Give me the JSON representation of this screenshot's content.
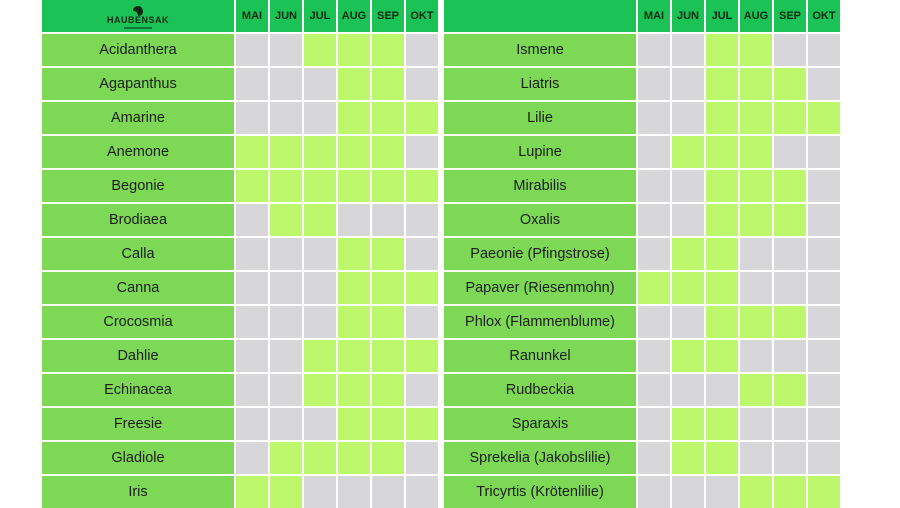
{
  "brand": {
    "name": "HAUBENSAK"
  },
  "colors": {
    "header": "#1bc256",
    "name_cell": "#7cd855",
    "bloom": "#bdf76b",
    "empty": "#d7d7d9"
  },
  "chart_data": {
    "type": "table",
    "title": "",
    "months": [
      "MAI",
      "JUN",
      "JUL",
      "AUG",
      "SEP",
      "OKT"
    ],
    "tables": [
      {
        "plants": [
          {
            "name": "Acidanthera",
            "bloom": [
              0,
              0,
              1,
              1,
              1,
              0
            ]
          },
          {
            "name": "Agapanthus",
            "bloom": [
              0,
              0,
              0,
              1,
              1,
              0
            ]
          },
          {
            "name": "Amarine",
            "bloom": [
              0,
              0,
              0,
              1,
              1,
              1
            ]
          },
          {
            "name": "Anemone",
            "bloom": [
              1,
              1,
              1,
              1,
              1,
              0
            ]
          },
          {
            "name": "Begonie",
            "bloom": [
              1,
              1,
              1,
              1,
              1,
              1
            ]
          },
          {
            "name": "Brodiaea",
            "bloom": [
              0,
              1,
              1,
              0,
              0,
              0
            ]
          },
          {
            "name": "Calla",
            "bloom": [
              0,
              0,
              0,
              1,
              1,
              0
            ]
          },
          {
            "name": "Canna",
            "bloom": [
              0,
              0,
              0,
              1,
              1,
              1
            ]
          },
          {
            "name": "Crocosmia",
            "bloom": [
              0,
              0,
              0,
              1,
              1,
              0
            ]
          },
          {
            "name": "Dahlie",
            "bloom": [
              0,
              0,
              1,
              1,
              1,
              1
            ]
          },
          {
            "name": "Echinacea",
            "bloom": [
              0,
              0,
              1,
              1,
              1,
              0
            ]
          },
          {
            "name": "Freesie",
            "bloom": [
              0,
              0,
              0,
              1,
              1,
              1
            ]
          },
          {
            "name": "Gladiole",
            "bloom": [
              0,
              1,
              1,
              1,
              1,
              0
            ]
          },
          {
            "name": "Iris",
            "bloom": [
              1,
              1,
              0,
              0,
              0,
              0
            ]
          }
        ]
      },
      {
        "plants": [
          {
            "name": "Ismene",
            "bloom": [
              0,
              0,
              1,
              1,
              0,
              0
            ]
          },
          {
            "name": "Liatris",
            "bloom": [
              0,
              0,
              1,
              1,
              1,
              0
            ]
          },
          {
            "name": "Lilie",
            "bloom": [
              0,
              0,
              1,
              1,
              1,
              1
            ]
          },
          {
            "name": "Lupine",
            "bloom": [
              0,
              1,
              1,
              1,
              0,
              0
            ]
          },
          {
            "name": "Mirabilis",
            "bloom": [
              0,
              0,
              1,
              1,
              1,
              0
            ]
          },
          {
            "name": "Oxalis",
            "bloom": [
              0,
              0,
              1,
              1,
              1,
              0
            ]
          },
          {
            "name": "Paeonie (Pfingstrose)",
            "bloom": [
              0,
              1,
              1,
              0,
              0,
              0
            ]
          },
          {
            "name": "Papaver (Riesenmohn)",
            "bloom": [
              1,
              1,
              1,
              0,
              0,
              0
            ]
          },
          {
            "name": "Phlox (Flammenblume)",
            "bloom": [
              0,
              0,
              1,
              1,
              1,
              0
            ]
          },
          {
            "name": "Ranunkel",
            "bloom": [
              0,
              1,
              1,
              0,
              0,
              0
            ]
          },
          {
            "name": "Rudbeckia",
            "bloom": [
              0,
              0,
              0,
              1,
              1,
              0
            ]
          },
          {
            "name": "Sparaxis",
            "bloom": [
              0,
              1,
              1,
              0,
              0,
              0
            ]
          },
          {
            "name": "Sprekelia (Jakobslilie)",
            "bloom": [
              0,
              1,
              1,
              0,
              0,
              0
            ]
          },
          {
            "name": "Tricyrtis (Krötenlilie)",
            "bloom": [
              0,
              0,
              0,
              1,
              1,
              1
            ]
          }
        ]
      }
    ]
  }
}
